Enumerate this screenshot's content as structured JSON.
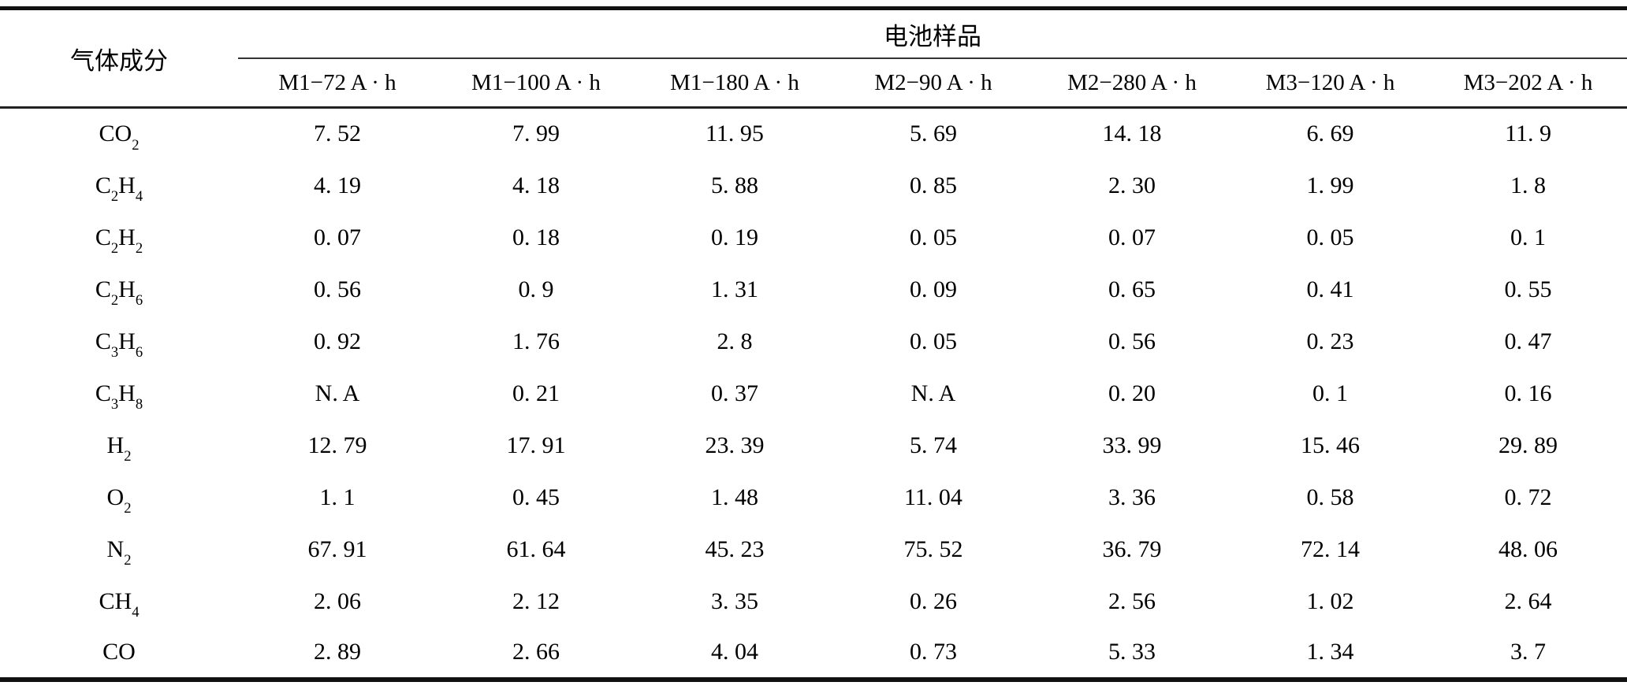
{
  "table": {
    "row_header_title": "气体成分",
    "col_group_title": "电池样品",
    "columns": [
      "M1−72 A · h",
      "M1−100 A · h",
      "M1−180 A · h",
      "M2−90 A · h",
      "M2−280 A · h",
      "M3−120 A · h",
      "M3−202 A · h"
    ],
    "rows": [
      {
        "gas": "CO_2",
        "values": [
          "7. 52",
          "7. 99",
          "11. 95",
          "5. 69",
          "14. 18",
          "6. 69",
          "11. 9"
        ]
      },
      {
        "gas": "C_2H_4",
        "values": [
          "4. 19",
          "4. 18",
          "5. 88",
          "0. 85",
          "2. 30",
          "1. 99",
          "1. 8"
        ]
      },
      {
        "gas": "C_2H_2",
        "values": [
          "0. 07",
          "0. 18",
          "0. 19",
          "0. 05",
          "0. 07",
          "0. 05",
          "0. 1"
        ]
      },
      {
        "gas": "C_2H_6",
        "values": [
          "0. 56",
          "0. 9",
          "1. 31",
          "0. 09",
          "0. 65",
          "0. 41",
          "0. 55"
        ]
      },
      {
        "gas": "C_3H_6",
        "values": [
          "0. 92",
          "1. 76",
          "2. 8",
          "0. 05",
          "0. 56",
          "0. 23",
          "0. 47"
        ]
      },
      {
        "gas": "C_3H_8",
        "values": [
          "N. A",
          "0. 21",
          "0. 37",
          "N. A",
          "0. 20",
          "0. 1",
          "0. 16"
        ]
      },
      {
        "gas": "H_2",
        "values": [
          "12. 79",
          "17. 91",
          "23. 39",
          "5. 74",
          "33. 99",
          "15. 46",
          "29. 89"
        ]
      },
      {
        "gas": "O_2",
        "values": [
          "1. 1",
          "0. 45",
          "1. 48",
          "11. 04",
          "3. 36",
          "0. 58",
          "0. 72"
        ]
      },
      {
        "gas": "N_2",
        "values": [
          "67. 91",
          "61. 64",
          "45. 23",
          "75. 52",
          "36. 79",
          "72. 14",
          "48. 06"
        ]
      },
      {
        "gas": "CH_4",
        "values": [
          "2. 06",
          "2. 12",
          "3. 35",
          "0. 26",
          "2. 56",
          "1. 02",
          "2. 64"
        ]
      },
      {
        "gas": "CO",
        "values": [
          "2. 89",
          "2. 66",
          "4. 04",
          "0. 73",
          "5. 33",
          "1. 34",
          "3. 7"
        ]
      }
    ]
  }
}
